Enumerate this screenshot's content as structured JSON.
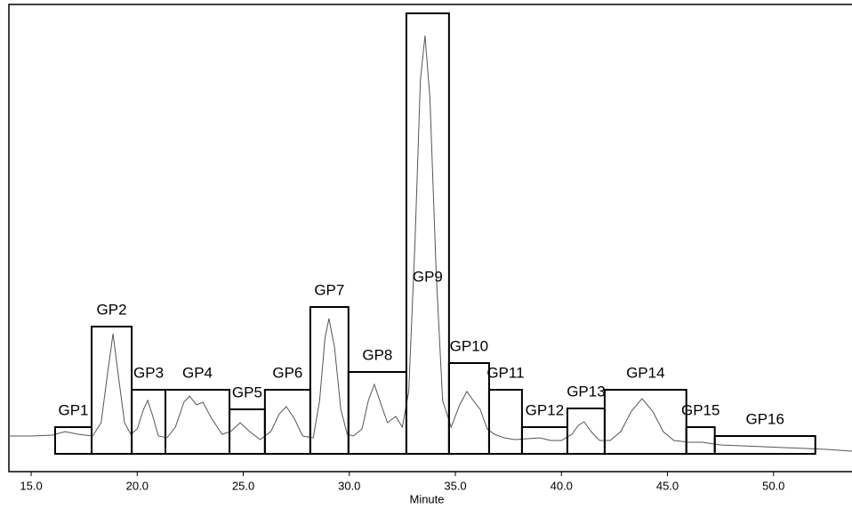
{
  "chart_data": {
    "type": "chromatogram",
    "x_label": "Minute",
    "xlim": [
      13.95,
      53.7
    ],
    "ylim": [
      0,
      525
    ],
    "xticks": [
      {
        "value": 15,
        "label": "15.0"
      },
      {
        "value": 20,
        "label": "20.0"
      },
      {
        "value": 25,
        "label": "25.0"
      },
      {
        "value": 30,
        "label": "30.0"
      },
      {
        "value": 35,
        "label": "35.0"
      },
      {
        "value": 40,
        "label": "40.0"
      },
      {
        "value": 45,
        "label": "45.0"
      },
      {
        "value": 50,
        "label": "50.0"
      }
    ],
    "baseline": 20,
    "boxes": [
      {
        "label": "GP1",
        "start": 16.13,
        "end": 17.85,
        "top": 50
      },
      {
        "label": "GP2",
        "start": 17.85,
        "end": 19.74,
        "top": 163
      },
      {
        "label": "GP3",
        "start": 19.74,
        "end": 21.33,
        "top": 92
      },
      {
        "label": "GP4",
        "start": 21.33,
        "end": 24.35,
        "top": 92
      },
      {
        "label": "GP5",
        "start": 24.35,
        "end": 26.02,
        "top": 70
      },
      {
        "label": "GP6",
        "start": 26.02,
        "end": 28.16,
        "top": 92
      },
      {
        "label": "GP7",
        "start": 28.16,
        "end": 29.96,
        "top": 185
      },
      {
        "label": "GP8",
        "start": 29.96,
        "end": 32.69,
        "top": 112
      },
      {
        "label": "GP9",
        "start": 32.69,
        "end": 34.7,
        "top": 515
      },
      {
        "label": "GP10",
        "start": 34.7,
        "end": 36.59,
        "top": 122
      },
      {
        "label": "GP11",
        "start": 36.59,
        "end": 38.14,
        "top": 92
      },
      {
        "label": "GP12",
        "start": 38.14,
        "end": 40.28,
        "top": 50
      },
      {
        "label": "GP13",
        "start": 40.28,
        "end": 42.04,
        "top": 71
      },
      {
        "label": "GP14",
        "start": 42.04,
        "end": 45.89,
        "top": 92
      },
      {
        "label": "GP15",
        "start": 45.89,
        "end": 47.23,
        "top": 50
      },
      {
        "label": "GP16",
        "start": 47.23,
        "end": 51.97,
        "top": 40
      }
    ],
    "trace": {
      "color": "#555555",
      "x": [
        13.95,
        15.0,
        16.0,
        16.6,
        17.2,
        17.9,
        18.3,
        18.6,
        18.86,
        19.1,
        19.4,
        19.7,
        20.0,
        20.3,
        20.49,
        20.7,
        21.0,
        21.4,
        21.8,
        22.2,
        22.46,
        22.8,
        23.1,
        23.5,
        24.0,
        24.4,
        24.85,
        25.3,
        25.8,
        26.3,
        26.7,
        27.03,
        27.4,
        27.8,
        28.3,
        28.6,
        28.85,
        29.04,
        29.3,
        29.6,
        29.9,
        30.2,
        30.6,
        30.9,
        31.18,
        31.5,
        31.8,
        32.19,
        32.5,
        32.8,
        33.1,
        33.35,
        33.57,
        33.8,
        34.1,
        34.4,
        34.8,
        35.2,
        35.54,
        35.9,
        36.17,
        36.5,
        36.84,
        37.3,
        37.8,
        38.4,
        38.98,
        39.5,
        40.0,
        40.5,
        40.8,
        41.07,
        41.4,
        41.8,
        42.3,
        42.8,
        43.3,
        43.8,
        44.3,
        44.8,
        45.3,
        46.0,
        46.65,
        47.5,
        48.5,
        49.5,
        50.5,
        51.5,
        52.5,
        53.7
      ],
      "values": [
        40,
        40,
        41,
        45,
        42,
        40,
        55,
        110,
        155,
        110,
        55,
        42,
        48,
        70,
        80,
        65,
        40,
        38,
        50,
        78,
        85,
        75,
        78,
        60,
        42,
        45,
        55,
        45,
        36,
        45,
        65,
        73,
        60,
        40,
        38,
        80,
        150,
        172,
        140,
        70,
        42,
        40,
        48,
        80,
        98,
        75,
        55,
        62,
        50,
        90,
        260,
        440,
        490,
        420,
        220,
        80,
        50,
        75,
        90,
        78,
        70,
        48,
        42,
        38,
        36,
        37,
        38,
        35,
        35,
        42,
        52,
        56,
        45,
        35,
        35,
        45,
        68,
        82,
        68,
        45,
        35,
        33,
        33,
        30,
        29,
        28,
        27,
        26,
        25,
        23
      ]
    }
  }
}
